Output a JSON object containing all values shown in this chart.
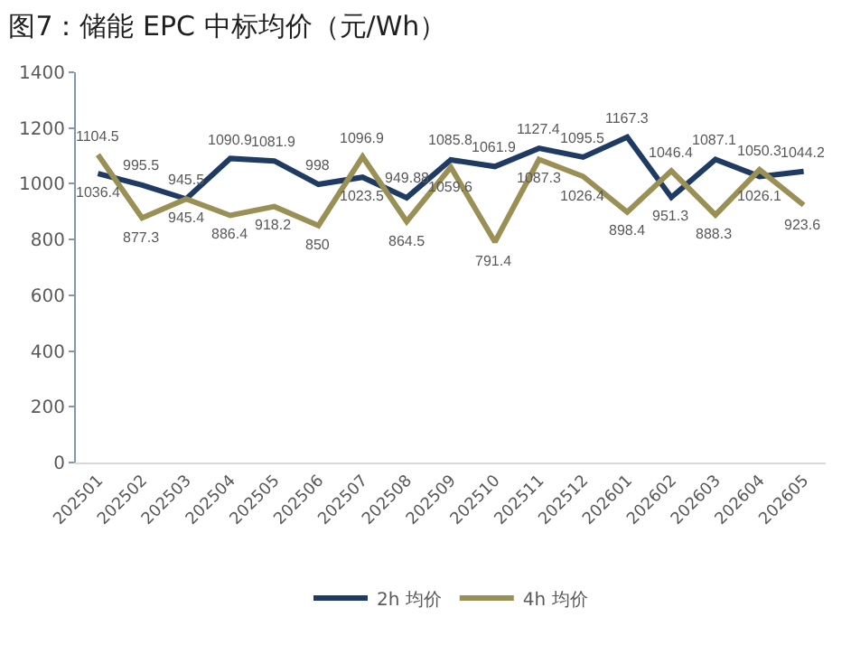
{
  "chart_data": {
    "type": "line",
    "title": "图7：储能 EPC 中标均价（元/Wh）",
    "categories": [
      "202501",
      "202502",
      "202503",
      "202504",
      "202505",
      "202506",
      "202507",
      "202508",
      "202509",
      "202510",
      "202511",
      "202512",
      "202601",
      "202602",
      "202603",
      "202604",
      "202605"
    ],
    "series": [
      {
        "name": "2h 均价",
        "color": "#1f3b63",
        "values": [
          1036.4,
          995.5,
          945.5,
          1090.9,
          1081.9,
          998,
          1023.5,
          949.88,
          1085.8,
          1061.9,
          1127.4,
          1095.5,
          1167.3,
          951.3,
          1087.1,
          1026.1,
          1044.2
        ]
      },
      {
        "name": "4h 均价",
        "color": "#9a8f55",
        "values": [
          1104.5,
          877.3,
          945.4,
          886.4,
          918.2,
          850,
          1096.9,
          864.5,
          1059.6,
          791.4,
          1087.3,
          1026.4,
          898.4,
          1046.4,
          888.3,
          1050.3,
          923.6
        ]
      }
    ],
    "ylim": [
      0,
      1400
    ],
    "yticks": [
      0,
      200,
      400,
      600,
      800,
      1000,
      1200,
      1400
    ],
    "grid": false,
    "legend": "bottom",
    "marker": "none",
    "line_style": "solid",
    "data_labels": true
  }
}
